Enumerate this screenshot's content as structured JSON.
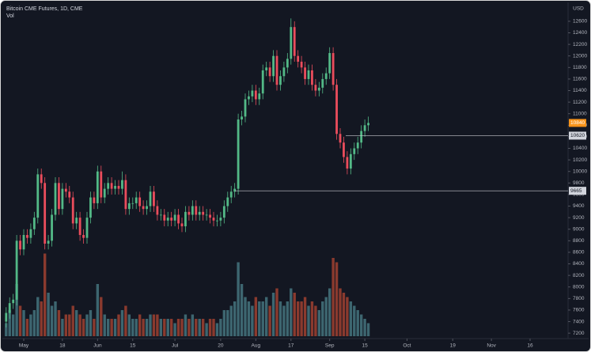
{
  "chart_data": {
    "type": "candlestick",
    "title": "Bitcoin CME Futures, 1D, CME",
    "volume_label": "Vol",
    "currency": "USD",
    "x": [
      0,
      1,
      2,
      3,
      4,
      5,
      6,
      7,
      8,
      9,
      10,
      11,
      12,
      13,
      14,
      15,
      16,
      17,
      18,
      19,
      20,
      21,
      22,
      23,
      24,
      25,
      26,
      27,
      28,
      29,
      30,
      31,
      32,
      33,
      34,
      35,
      36,
      37,
      38,
      39,
      40,
      41,
      42,
      43,
      44,
      45,
      46,
      47,
      48,
      49,
      50,
      51,
      52,
      53,
      54,
      55,
      56,
      57,
      58,
      59,
      60,
      61,
      62,
      63,
      64,
      65,
      66,
      67,
      68,
      69,
      70,
      71,
      72,
      73,
      74,
      75,
      76,
      77,
      78,
      79,
      80,
      81,
      82,
      83,
      84,
      85,
      86,
      87,
      88,
      89,
      90,
      91,
      92,
      93,
      94,
      95,
      96,
      97,
      98,
      99,
      100,
      101,
      102,
      103
    ],
    "open": [
      7400,
      7550,
      7720,
      7780,
      8800,
      8650,
      8900,
      8850,
      9000,
      9200,
      9950,
      9800,
      8750,
      8800,
      9250,
      9800,
      9350,
      9700,
      9650,
      9550,
      9100,
      9200,
      8900,
      8850,
      9200,
      9550,
      9450,
      10000,
      9550,
      9700,
      9800,
      9700,
      9750,
      9700,
      9850,
      9350,
      9450,
      9450,
      9550,
      9400,
      9350,
      9400,
      9650,
      9400,
      9250,
      9250,
      9150,
      9200,
      9150,
      9250,
      9100,
      9050,
      9300,
      9250,
      9400,
      9250,
      9300,
      9250,
      9250,
      9200,
      9150,
      9150,
      9200,
      9400,
      9550,
      9650,
      9700,
      10900,
      10950,
      11250,
      11300,
      11400,
      11250,
      11350,
      11750,
      11800,
      11650,
      12000,
      11500,
      11650,
      11800,
      11950,
      12500,
      12000,
      11900,
      11800,
      11600,
      11750,
      11500,
      11400,
      11450,
      11600,
      11700,
      12050,
      11500,
      10650,
      10500,
      10250,
      10050,
      10300,
      10400,
      10500,
      10700,
      10800
    ],
    "high": [
      7650,
      7820,
      7880,
      8900,
      8900,
      9000,
      9000,
      9100,
      9300,
      10050,
      10050,
      9900,
      8900,
      9350,
      9900,
      9900,
      9800,
      9800,
      9750,
      9650,
      9300,
      9300,
      9000,
      9300,
      9650,
      9650,
      10100,
      10100,
      9800,
      9900,
      9900,
      9850,
      9850,
      10000,
      9950,
      9550,
      9550,
      9650,
      9650,
      9500,
      9500,
      9750,
      9750,
      9500,
      9350,
      9350,
      9300,
      9300,
      9350,
      9350,
      9200,
      9400,
      9400,
      9500,
      9500,
      9400,
      9400,
      9350,
      9350,
      9300,
      9250,
      9300,
      9500,
      9650,
      9750,
      9800,
      11000,
      11050,
      11350,
      11400,
      11500,
      11500,
      11450,
      11850,
      11900,
      11900,
      12100,
      12100,
      11750,
      11900,
      12050,
      12650,
      12600,
      12100,
      12000,
      11900,
      11850,
      11850,
      11600,
      11550,
      11700,
      11800,
      12150,
      12150,
      11600,
      10750,
      10600,
      10350,
      10400,
      10500,
      10600,
      10800,
      10900,
      10950
    ],
    "low": [
      7300,
      7450,
      7620,
      7680,
      8550,
      8550,
      8750,
      8750,
      8900,
      9100,
      9700,
      8650,
      8650,
      8700,
      9150,
      9250,
      9250,
      9550,
      9450,
      9000,
      9000,
      8800,
      8750,
      8750,
      9100,
      9350,
      9350,
      9450,
      9450,
      9600,
      9600,
      9600,
      9600,
      9600,
      9250,
      9250,
      9350,
      9350,
      9300,
      9250,
      9250,
      9300,
      9300,
      9150,
      9150,
      9050,
      9050,
      9050,
      9050,
      9000,
      8950,
      8950,
      9150,
      9150,
      9150,
      9150,
      9150,
      9150,
      9100,
      9050,
      9050,
      9050,
      9100,
      9300,
      9450,
      9550,
      9600,
      10800,
      10850,
      11150,
      11200,
      11150,
      11150,
      11250,
      11650,
      11550,
      11550,
      11400,
      11400,
      11550,
      11700,
      11850,
      11900,
      11800,
      11700,
      11500,
      11500,
      11400,
      11300,
      11300,
      11350,
      11500,
      11600,
      11400,
      10550,
      10400,
      10150,
      9950,
      9950,
      10200,
      10300,
      10400,
      10600,
      10700
    ],
    "close": [
      7550,
      7720,
      7780,
      8800,
      8650,
      8900,
      8850,
      9000,
      9200,
      9950,
      9800,
      8750,
      8800,
      9250,
      9800,
      9350,
      9700,
      9650,
      9550,
      9100,
      9200,
      8900,
      8850,
      9200,
      9550,
      9450,
      10000,
      9550,
      9700,
      9800,
      9700,
      9750,
      9700,
      9850,
      9350,
      9450,
      9450,
      9550,
      9400,
      9350,
      9400,
      9650,
      9400,
      9250,
      9250,
      9150,
      9200,
      9150,
      9250,
      9100,
      9050,
      9300,
      9250,
      9400,
      9250,
      9300,
      9250,
      9250,
      9200,
      9150,
      9150,
      9200,
      9400,
      9550,
      9650,
      9700,
      10900,
      10950,
      11250,
      11300,
      11400,
      11250,
      11350,
      11750,
      11800,
      11650,
      12000,
      11500,
      11650,
      11800,
      11950,
      12500,
      12000,
      11900,
      11800,
      11600,
      11750,
      11500,
      11400,
      11450,
      11600,
      11700,
      12050,
      11500,
      10650,
      10500,
      10250,
      10050,
      10300,
      10400,
      10500,
      10700,
      10800,
      10840
    ],
    "volume": [
      15,
      30,
      25,
      60,
      35,
      30,
      20,
      25,
      30,
      45,
      40,
      95,
      50,
      35,
      40,
      30,
      20,
      25,
      25,
      35,
      30,
      25,
      20,
      25,
      30,
      20,
      60,
      45,
      25,
      20,
      20,
      20,
      25,
      30,
      35,
      25,
      20,
      20,
      25,
      20,
      20,
      25,
      25,
      25,
      20,
      20,
      20,
      20,
      15,
      20,
      20,
      25,
      20,
      25,
      20,
      20,
      20,
      15,
      20,
      20,
      15,
      20,
      30,
      30,
      35,
      40,
      85,
      60,
      45,
      40,
      35,
      45,
      40,
      40,
      45,
      35,
      50,
      55,
      40,
      35,
      40,
      55,
      50,
      40,
      40,
      45,
      35,
      40,
      35,
      30,
      40,
      45,
      55,
      90,
      85,
      55,
      50,
      45,
      40,
      35,
      30,
      25,
      20,
      15
    ],
    "up_color": "#53b987",
    "down_color": "#eb4d5c",
    "volume_up_color": "#3d6670",
    "volume_down_color": "#8a3a2e",
    "last_price_color": "#f7931a",
    "price_lines": [
      9665,
      10620
    ],
    "xlim": [
      -1.75,
      159.8
    ],
    "xticks": [
      {
        "value": 5,
        "label": "May"
      },
      {
        "value": 16,
        "label": "18"
      },
      {
        "value": 26,
        "label": "Jun"
      },
      {
        "value": 36,
        "label": "15"
      },
      {
        "value": 48,
        "label": "Jul"
      },
      {
        "value": 61,
        "label": "20"
      },
      {
        "value": 71,
        "label": "Aug"
      },
      {
        "value": 81,
        "label": "17"
      },
      {
        "value": 92,
        "label": "Sep"
      },
      {
        "value": 102,
        "label": "15"
      },
      {
        "value": 114,
        "label": "Oct"
      },
      {
        "value": 127,
        "label": "19"
      },
      {
        "value": 138,
        "label": "Nov"
      },
      {
        "value": 149,
        "label": "16"
      }
    ],
    "ylim": [
      7106,
      12900
    ],
    "yticks": [
      7200,
      7400,
      7600,
      7800,
      8000,
      8200,
      8400,
      8600,
      8800,
      9000,
      9200,
      9400,
      9600,
      9800,
      10000,
      10200,
      10400,
      10600,
      10800,
      11000,
      11200,
      11400,
      11600,
      11800,
      12000,
      12200,
      12400,
      12600
    ],
    "grid": false
  }
}
